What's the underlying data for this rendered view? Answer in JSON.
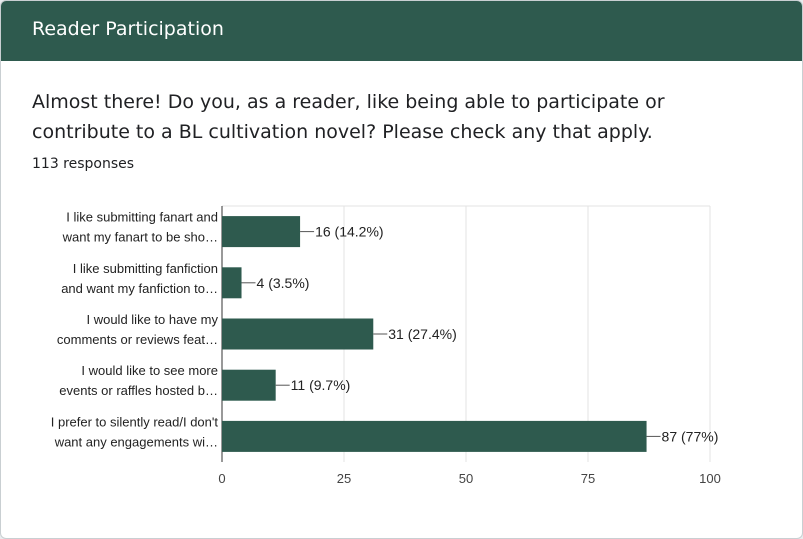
{
  "header": {
    "title": "Reader Participation"
  },
  "question": {
    "text": "Almost there! Do you, as a reader, like being able to participate or contribute to a BL cultivation novel? Please check any that apply.",
    "responses": "113 responses"
  },
  "colors": {
    "header_bg": "#2e5a4e",
    "bar": "#2e5a4e"
  },
  "chart_data": {
    "type": "bar",
    "orientation": "horizontal",
    "categories": [
      [
        "I like submitting fanart and",
        "want my fanart to be sho…"
      ],
      [
        "I like submitting fanfiction",
        "and want my fanfiction to…"
      ],
      [
        "I would like to have my",
        "comments or reviews feat…"
      ],
      [
        "I would like to see more",
        "events or raffles hosted b…"
      ],
      [
        "I prefer to silently read/I don't",
        "want any engagements wi…"
      ]
    ],
    "values": [
      16,
      4,
      31,
      11,
      87
    ],
    "data_labels": [
      "16 (14.2%)",
      "4 (3.5%)",
      "31 (27.4%)",
      "11 (9.7%)",
      "87 (77%)"
    ],
    "xlim": [
      0,
      100
    ],
    "xticks": [
      0,
      25,
      50,
      75,
      100
    ],
    "grid": true
  }
}
